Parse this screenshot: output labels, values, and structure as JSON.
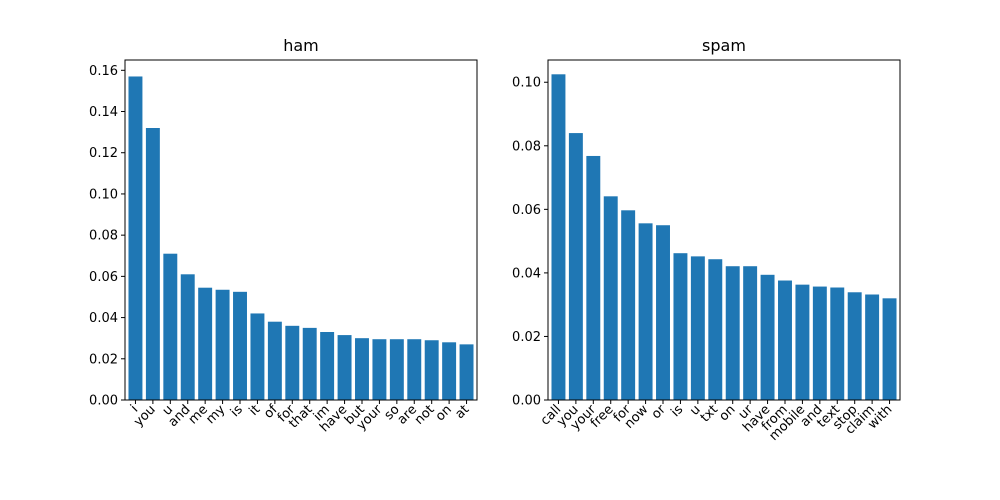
{
  "chart_data": [
    {
      "type": "bar",
      "title": "ham",
      "xlabel": "",
      "ylabel": "",
      "ylim": [
        0,
        0.165
      ],
      "yticks": [
        "0.00",
        "0.02",
        "0.04",
        "0.06",
        "0.08",
        "0.10",
        "0.12",
        "0.14",
        "0.16"
      ],
      "categories": [
        "i",
        "you",
        "u",
        "and",
        "me",
        "my",
        "is",
        "it",
        "of",
        "for",
        "that",
        "im",
        "have",
        "but",
        "your",
        "so",
        "are",
        "not",
        "on",
        "at"
      ],
      "values": [
        0.157,
        0.132,
        0.071,
        0.061,
        0.0545,
        0.0535,
        0.0525,
        0.042,
        0.038,
        0.036,
        0.035,
        0.033,
        0.0315,
        0.03,
        0.0295,
        0.0295,
        0.0295,
        0.029,
        0.028,
        0.027
      ],
      "color": "#1f77b4",
      "grid": false,
      "legend": "none"
    },
    {
      "type": "bar",
      "title": "spam",
      "xlabel": "",
      "ylabel": "",
      "ylim": [
        0,
        0.107
      ],
      "yticks": [
        "0.00",
        "0.02",
        "0.04",
        "0.06",
        "0.08",
        "0.10"
      ],
      "categories": [
        "call",
        "you",
        "your",
        "free",
        "for",
        "now",
        "or",
        "is",
        "u",
        "txt",
        "on",
        "ur",
        "have",
        "from",
        "mobile",
        "and",
        "text",
        "stop",
        "claim",
        "with"
      ],
      "values": [
        0.1025,
        0.084,
        0.0768,
        0.0641,
        0.0597,
        0.0556,
        0.055,
        0.0462,
        0.0452,
        0.0443,
        0.0421,
        0.0421,
        0.0394,
        0.0376,
        0.0363,
        0.0357,
        0.0354,
        0.0339,
        0.0332,
        0.032
      ],
      "color": "#1f77b4",
      "grid": false,
      "legend": "none"
    }
  ]
}
